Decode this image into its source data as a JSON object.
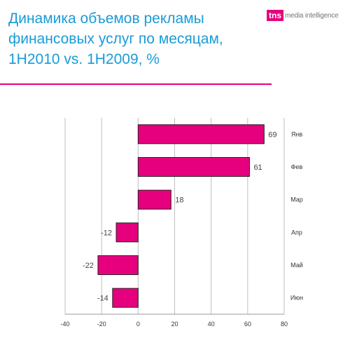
{
  "header": {
    "title": "Динамика объемов рекламы финансовых услуг по месяцам, 1H2010 vs. 1H2009, %",
    "logo_mark": "tns",
    "logo_text": "media intelligence"
  },
  "colors": {
    "title": "#1a9bd7",
    "accent": "#e6007e",
    "bar_fill": "#e6007e",
    "grid": "#bfbfbf"
  },
  "chart_data": {
    "type": "bar",
    "orientation": "horizontal",
    "categories": [
      "Янв",
      "Фев",
      "Мар",
      "Апр",
      "Май",
      "Июн"
    ],
    "values": [
      69,
      61,
      18,
      -12,
      -22,
      -14
    ],
    "xlim": [
      -40,
      80
    ],
    "xticks": [
      -40,
      -20,
      0,
      20,
      40,
      60,
      80
    ],
    "grid": true,
    "category_labels_side": "right",
    "legend": false
  }
}
